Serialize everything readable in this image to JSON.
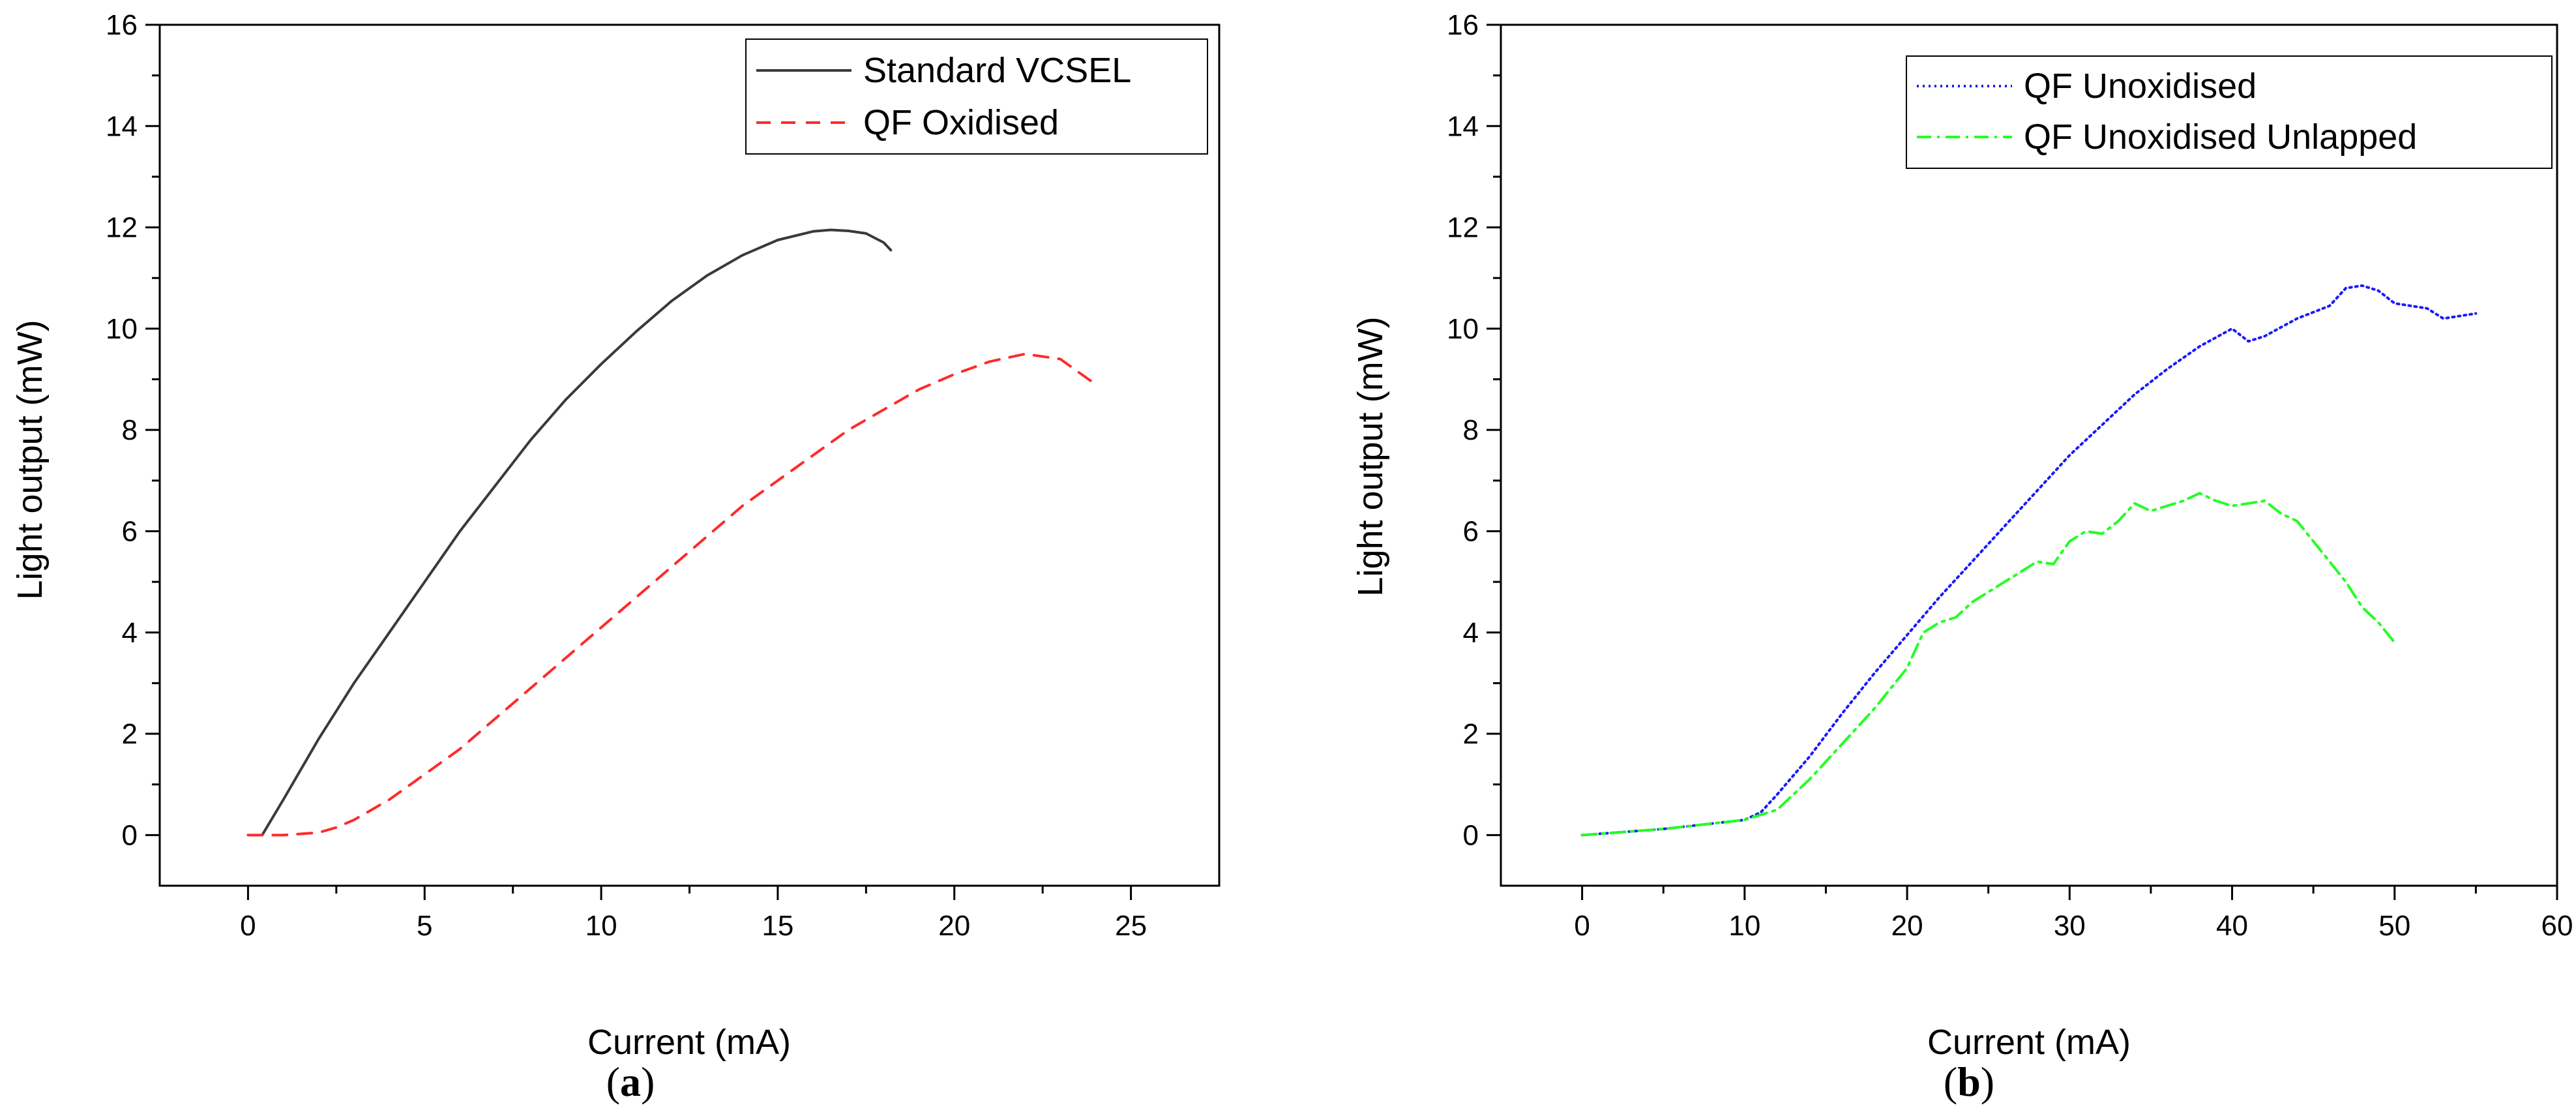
{
  "chart_data": [
    {
      "type": "line",
      "panel_label": "(a)",
      "panel_letter": "a",
      "xlabel": "Current (mA)",
      "ylabel": "Light output (mW)",
      "xlim": [
        -2.5,
        27.5
      ],
      "ylim": [
        -1,
        16
      ],
      "xticks": [
        0,
        5,
        10,
        15,
        20,
        25
      ],
      "yticks": [
        0,
        2,
        4,
        6,
        8,
        10,
        12,
        14,
        16
      ],
      "legend_position": "top-right",
      "series": [
        {
          "name": "Standard VCSEL",
          "color": "#3a3a3a",
          "style": "solid",
          "x": [
            0.4,
            1,
            2,
            3,
            4,
            5,
            6,
            7,
            8,
            9,
            10,
            11,
            12,
            13,
            14,
            15,
            16,
            16.5,
            17,
            17.5,
            18,
            18.2
          ],
          "y": [
            0,
            0.7,
            1.9,
            3.0,
            4.0,
            5.0,
            6.0,
            6.9,
            7.8,
            8.6,
            9.3,
            9.95,
            10.55,
            11.05,
            11.45,
            11.75,
            11.92,
            11.95,
            11.93,
            11.88,
            11.7,
            11.55
          ]
        },
        {
          "name": "QF Oxidised",
          "color": "#ff2a2a",
          "style": "dashed",
          "x": [
            0,
            1,
            2,
            2.5,
            3,
            4,
            5,
            6,
            7,
            8,
            9,
            10,
            11,
            12,
            13,
            14,
            15,
            16,
            17,
            18,
            19,
            20,
            21,
            22,
            23,
            24
          ],
          "y": [
            0,
            0,
            0.05,
            0.15,
            0.3,
            0.7,
            1.2,
            1.7,
            2.3,
            2.9,
            3.5,
            4.1,
            4.7,
            5.3,
            5.9,
            6.5,
            7.0,
            7.5,
            8.0,
            8.4,
            8.8,
            9.1,
            9.35,
            9.5,
            9.4,
            8.9
          ]
        }
      ]
    },
    {
      "type": "line",
      "panel_label": "(b)",
      "panel_letter": "b",
      "xlabel": "Current (mA)",
      "ylabel": "Light output (mW)",
      "xlim": [
        -5,
        60
      ],
      "ylim": [
        -1,
        16
      ],
      "xticks": [
        0,
        10,
        20,
        30,
        40,
        50,
        60
      ],
      "yticks": [
        0,
        2,
        4,
        6,
        8,
        10,
        12,
        14,
        16
      ],
      "legend_position": "top-right",
      "series": [
        {
          "name": "QF Unoxidised",
          "color": "#1a1aff",
          "style": "dotted",
          "x": [
            0,
            5,
            10,
            11,
            12,
            14,
            16,
            18,
            20,
            22,
            24,
            26,
            28,
            30,
            32,
            34,
            36,
            38,
            40,
            41,
            42,
            44,
            46,
            47,
            48,
            49,
            50,
            52,
            53,
            55
          ],
          "y": [
            0,
            0.12,
            0.3,
            0.45,
            0.8,
            1.55,
            2.4,
            3.2,
            3.95,
            4.7,
            5.4,
            6.1,
            6.8,
            7.5,
            8.1,
            8.7,
            9.2,
            9.65,
            10.0,
            9.75,
            9.85,
            10.2,
            10.45,
            10.8,
            10.85,
            10.75,
            10.5,
            10.4,
            10.2,
            10.3
          ]
        },
        {
          "name": "QF Unoxidised Unlapped",
          "color": "#22ff22",
          "style": "dashdot",
          "x": [
            0,
            5,
            10,
            12,
            14,
            16,
            18,
            20,
            21,
            22,
            23,
            24,
            26,
            28,
            29,
            30,
            31,
            32,
            33,
            34,
            35,
            36,
            37,
            38,
            39,
            40,
            41,
            42,
            43,
            44,
            45,
            46,
            47,
            48,
            49,
            50
          ],
          "y": [
            0,
            0.12,
            0.3,
            0.5,
            1.1,
            1.8,
            2.5,
            3.3,
            4.0,
            4.2,
            4.3,
            4.6,
            5.0,
            5.4,
            5.35,
            5.8,
            6.0,
            5.95,
            6.2,
            6.55,
            6.4,
            6.5,
            6.6,
            6.75,
            6.6,
            6.5,
            6.55,
            6.6,
            6.35,
            6.2,
            5.8,
            5.4,
            5.0,
            4.5,
            4.2,
            3.8
          ]
        }
      ]
    }
  ]
}
